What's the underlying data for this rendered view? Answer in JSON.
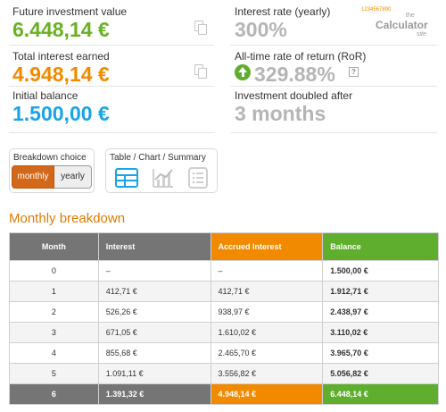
{
  "left_stats": [
    {
      "label": "Future investment value",
      "value": "6.448,14 €"
    },
    {
      "label": "Total interest earned",
      "value": "4.948,14 €"
    },
    {
      "label": "Initial balance",
      "value": "1.500,00 €"
    }
  ],
  "right_stats": [
    {
      "label": "Interest rate (yearly)",
      "value": "300%"
    },
    {
      "label": "All-time rate of return (RoR)",
      "value": "329.88%"
    },
    {
      "label": "Investment doubled after",
      "value": "3 months"
    }
  ],
  "help_glyph": "?",
  "logo": {
    "digits": "1234567890",
    "the": "the",
    "name": "Calculator",
    "site": "site"
  },
  "breakdown": {
    "label": "Breakdown choice",
    "options": [
      "monthly",
      "yearly"
    ],
    "selected": "monthly"
  },
  "view": {
    "label": "Table / Chart / Summary",
    "icons": [
      "table-icon",
      "chart-icon",
      "summary-icon"
    ]
  },
  "section_title": "Monthly breakdown",
  "table": {
    "headers": [
      "Month",
      "Interest",
      "Accrued Interest",
      "Balance"
    ],
    "rows": [
      [
        "0",
        "–",
        "–",
        "1.500,00 €"
      ],
      [
        "1",
        "412,71 €",
        "412,71 €",
        "1.912,71 €"
      ],
      [
        "2",
        "526,26 €",
        "938,97 €",
        "2.438,97 €"
      ],
      [
        "3",
        "671,05 €",
        "1.610,02 €",
        "3.110,02 €"
      ],
      [
        "4",
        "855,68 €",
        "2.465,70 €",
        "3.965,70 €"
      ],
      [
        "5",
        "1.091,11 €",
        "3.556,82 €",
        "5.056,82 €"
      ],
      [
        "6",
        "1.391,32 €",
        "4.948,14 €",
        "6.448,14 €"
      ]
    ]
  },
  "colors": {
    "green": "#6ab023",
    "orange": "#f28a00",
    "blue": "#1aa3e8",
    "gray": "#b5b5b5",
    "accent": "#d4681a"
  }
}
